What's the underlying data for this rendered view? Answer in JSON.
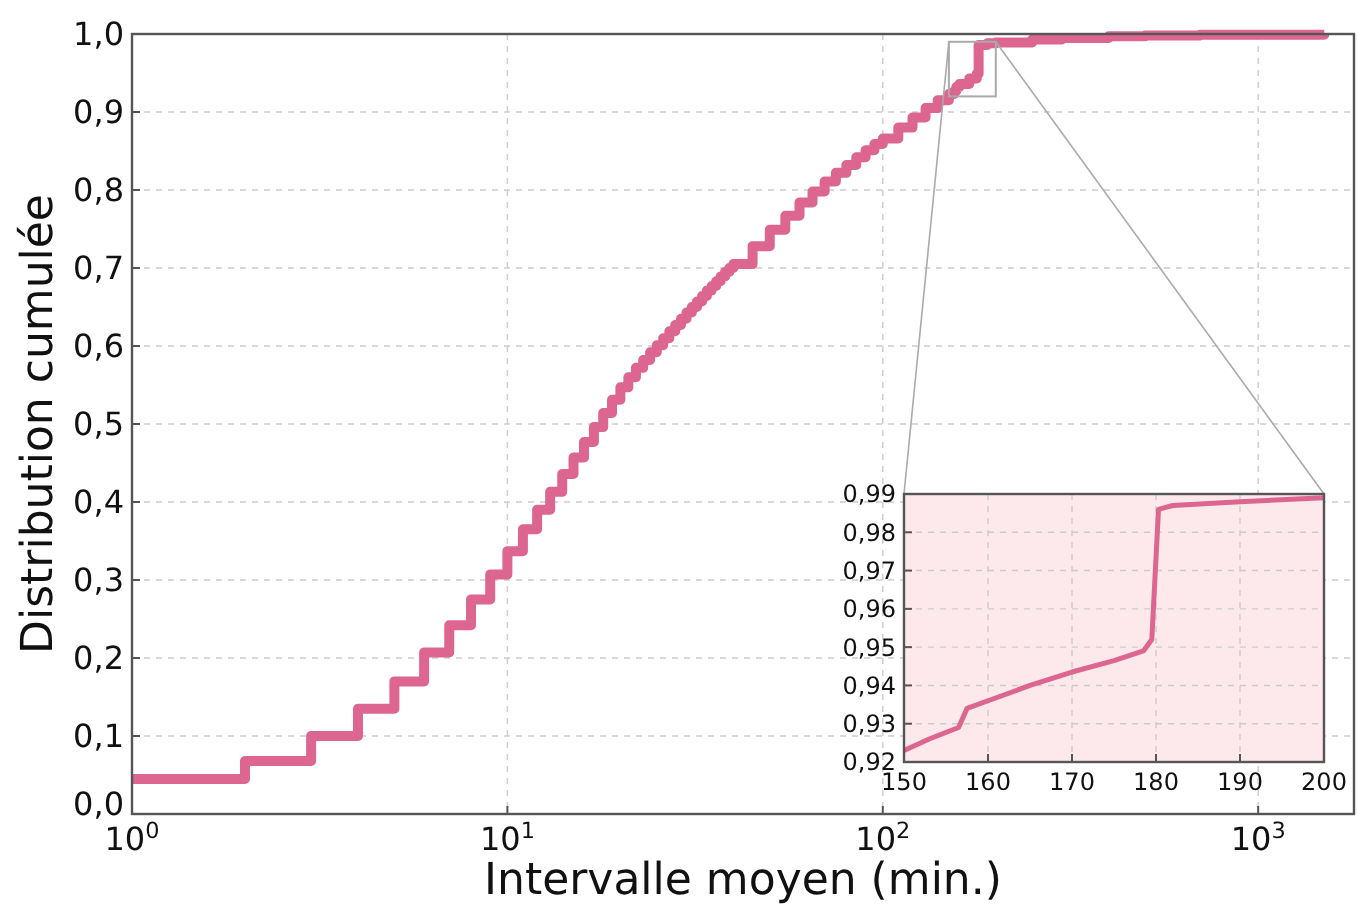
{
  "chart_data": [
    {
      "type": "step",
      "xlabel": "Intervalle moyen (min.)",
      "ylabel": "Distribution cumulée",
      "log": "x",
      "grid": true,
      "color": "#dd6690",
      "x": [
        1,
        2,
        3,
        4,
        5,
        6,
        7,
        8,
        9,
        10,
        11,
        12,
        13,
        14,
        15,
        16,
        17,
        18,
        19,
        20,
        21,
        22,
        23,
        24,
        25,
        26,
        27,
        28,
        29,
        30,
        31,
        32,
        33,
        34,
        35,
        36,
        37,
        38,
        39,
        40,
        45,
        50,
        55,
        60,
        65,
        70,
        75,
        80,
        85,
        90,
        95,
        100,
        110,
        120,
        130,
        140,
        150,
        155,
        157,
        160,
        170,
        178,
        180,
        190,
        200,
        250,
        300,
        400,
        500,
        700,
        1000,
        1500
      ],
      "values": [
        0.045,
        0.068,
        0.1,
        0.135,
        0.17,
        0.207,
        0.242,
        0.275,
        0.307,
        0.337,
        0.365,
        0.39,
        0.413,
        0.436,
        0.457,
        0.477,
        0.496,
        0.514,
        0.531,
        0.547,
        0.56,
        0.572,
        0.582,
        0.592,
        0.601,
        0.61,
        0.619,
        0.627,
        0.635,
        0.643,
        0.65,
        0.657,
        0.664,
        0.671,
        0.677,
        0.683,
        0.689,
        0.695,
        0.7,
        0.705,
        0.728,
        0.749,
        0.767,
        0.784,
        0.798,
        0.811,
        0.822,
        0.832,
        0.842,
        0.851,
        0.859,
        0.866,
        0.88,
        0.893,
        0.905,
        0.915,
        0.923,
        0.927,
        0.932,
        0.936,
        0.943,
        0.949,
        0.986,
        0.988,
        0.989,
        0.993,
        0.995,
        0.997,
        0.998,
        0.999,
        0.999,
        1.0
      ],
      "xlim": [
        1,
        1800
      ],
      "ylim": [
        0,
        1
      ],
      "xticks": [
        {
          "value": 1,
          "label": "10$^{0}$"
        },
        {
          "value": 10,
          "label": "10$^{1}$"
        },
        {
          "value": 100,
          "label": "10$^{2}$"
        },
        {
          "value": 1000,
          "label": "10$^{3}$"
        }
      ],
      "yticks": [
        {
          "value": 0,
          "label": "0,0"
        },
        {
          "value": 0.1,
          "label": "0,1"
        },
        {
          "value": 0.2,
          "label": "0,2"
        },
        {
          "value": 0.3,
          "label": "0,3"
        },
        {
          "value": 0.4,
          "label": "0,4"
        },
        {
          "value": 0.5,
          "label": "0,5"
        },
        {
          "value": 0.6,
          "label": "0,6"
        },
        {
          "value": 0.7,
          "label": "0,7"
        },
        {
          "value": 0.8,
          "label": "0,8"
        },
        {
          "value": 0.9,
          "label": "0,9"
        },
        {
          "value": 1,
          "label": "1,0"
        }
      ]
    },
    {
      "type": "line",
      "grid": true,
      "color": "#dd6690",
      "x": [
        150,
        153,
        156.5,
        157.5,
        160,
        165,
        170,
        175,
        178.5,
        179.5,
        180.3,
        182,
        190,
        200
      ],
      "values": [
        0.923,
        0.926,
        0.929,
        0.934,
        0.936,
        0.94,
        0.9435,
        0.9465,
        0.949,
        0.952,
        0.986,
        0.987,
        0.988,
        0.989
      ],
      "xlim": [
        150,
        200
      ],
      "ylim": [
        0.92,
        0.99
      ],
      "xticks": [
        150,
        160,
        170,
        180,
        190,
        200
      ],
      "yticks": [
        {
          "value": 0.92,
          "label": "0,92"
        },
        {
          "value": 0.93,
          "label": "0,93"
        },
        {
          "value": 0.94,
          "label": "0,94"
        },
        {
          "value": 0.95,
          "label": "0,95"
        },
        {
          "value": 0.96,
          "label": "0,96"
        },
        {
          "value": 0.97,
          "label": "0,97"
        },
        {
          "value": 0.98,
          "label": "0,98"
        },
        {
          "value": 0.99,
          "label": "0,99"
        }
      ]
    }
  ]
}
